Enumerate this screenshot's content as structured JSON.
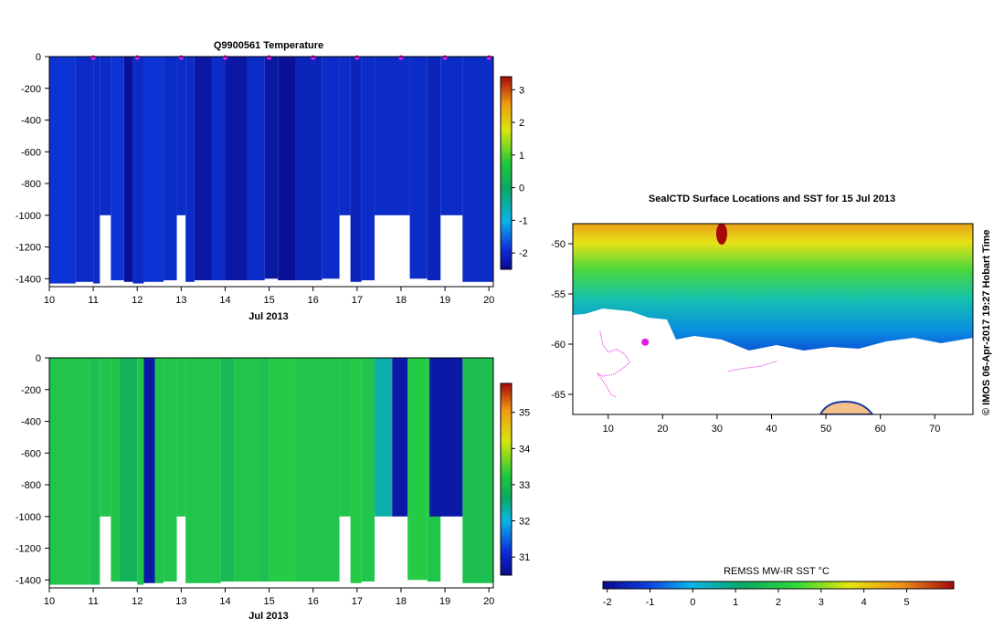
{
  "chart_data": [
    {
      "type": "heatmap",
      "title": "Q9900561  Temperature",
      "xlabel": "Jul 2013",
      "ylabel": "",
      "x_ticks": [
        "10",
        "11",
        "12",
        "13",
        "14",
        "15",
        "16",
        "17",
        "18",
        "19",
        "20"
      ],
      "y_ticks": [
        "0",
        "-200",
        "-400",
        "-600",
        "-800",
        "-1000",
        "-1200",
        "-1400"
      ],
      "xlim": [
        10,
        20.1
      ],
      "ylim": [
        -1450,
        0
      ],
      "colorbar": {
        "ticks": [
          "-2",
          "-1",
          "0",
          "1",
          "2",
          "3"
        ],
        "range": [
          -2.5,
          3.4
        ]
      },
      "profile_markers_day": [
        11,
        12,
        13,
        14,
        15,
        16,
        17,
        18,
        19,
        20
      ],
      "profiles": [
        {
          "x0": 10.0,
          "x1": 10.6,
          "depth": 1430,
          "value": -1.9
        },
        {
          "x0": 10.6,
          "x1": 11.0,
          "depth": 1420,
          "value": -2.0
        },
        {
          "x0": 11.0,
          "x1": 11.15,
          "depth": 1430,
          "value": -2.0
        },
        {
          "x0": 11.4,
          "x1": 11.7,
          "depth": 1410,
          "value": -1.9
        },
        {
          "x0": 11.7,
          "x1": 11.9,
          "depth": 1420,
          "value": -2.4
        },
        {
          "x0": 11.9,
          "x1": 12.15,
          "depth": 1430,
          "value": -2.0
        },
        {
          "x0": 12.15,
          "x1": 12.6,
          "depth": 1420,
          "value": -1.9
        },
        {
          "x0": 12.6,
          "x1": 12.9,
          "depth": 1410,
          "value": -2.0
        },
        {
          "x0": 13.1,
          "x1": 13.3,
          "depth": 1420,
          "value": -2.0
        },
        {
          "x0": 13.3,
          "x1": 13.7,
          "depth": 1410,
          "value": -2.3
        },
        {
          "x0": 13.7,
          "x1": 14.0,
          "depth": 1410,
          "value": -2.0
        },
        {
          "x0": 14.0,
          "x1": 14.5,
          "depth": 1410,
          "value": -2.3
        },
        {
          "x0": 14.5,
          "x1": 14.9,
          "depth": 1410,
          "value": -2.0
        },
        {
          "x0": 14.9,
          "x1": 15.2,
          "depth": 1400,
          "value": -2.3
        },
        {
          "x0": 15.2,
          "x1": 15.6,
          "depth": 1410,
          "value": -2.4
        },
        {
          "x0": 15.6,
          "x1": 16.2,
          "depth": 1410,
          "value": -2.1
        },
        {
          "x0": 16.2,
          "x1": 16.6,
          "depth": 1400,
          "value": -2.0
        },
        {
          "x0": 16.85,
          "x1": 17.1,
          "depth": 1420,
          "value": -2.1
        },
        {
          "x0": 17.1,
          "x1": 17.4,
          "depth": 1410,
          "value": -2.0
        },
        {
          "x0": 18.2,
          "x1": 18.6,
          "depth": 1400,
          "value": -2.0
        },
        {
          "x0": 18.6,
          "x1": 18.9,
          "depth": 1410,
          "value": -2.1
        },
        {
          "x0": 19.4,
          "x1": 20.1,
          "depth": 1420,
          "value": -2.0
        }
      ],
      "shallow_profiles": [
        {
          "x0": 11.15,
          "x1": 11.4,
          "depth": 1000,
          "value": -2.0
        },
        {
          "x0": 12.9,
          "x1": 13.1,
          "depth": 1000,
          "value": -2.0
        },
        {
          "x0": 16.6,
          "x1": 16.85,
          "depth": 1000,
          "value": -2.0
        },
        {
          "x0": 17.4,
          "x1": 18.2,
          "depth": 1000,
          "value": -2.0
        },
        {
          "x0": 18.9,
          "x1": 19.4,
          "depth": 1000,
          "value": -2.0
        }
      ]
    },
    {
      "type": "heatmap",
      "title": "",
      "xlabel": "Jul 2013",
      "ylabel": "",
      "x_ticks": [
        "10",
        "11",
        "12",
        "13",
        "14",
        "15",
        "16",
        "17",
        "18",
        "19",
        "20"
      ],
      "y_ticks": [
        "0",
        "-200",
        "-400",
        "-600",
        "-800",
        "-1000",
        "-1200",
        "-1400"
      ],
      "xlim": [
        10,
        20.1
      ],
      "ylim": [
        -1450,
        0
      ],
      "colorbar": {
        "ticks": [
          "31",
          "32",
          "33",
          "34",
          "35"
        ],
        "range": [
          30.5,
          35.8
        ]
      },
      "profiles": [
        {
          "x0": 10.0,
          "x1": 10.9,
          "depth": 1430,
          "value": 33.1
        },
        {
          "x0": 10.9,
          "x1": 11.15,
          "depth": 1430,
          "value": 33.0
        },
        {
          "x0": 11.4,
          "x1": 11.6,
          "depth": 1410,
          "value": 33.1
        },
        {
          "x0": 11.6,
          "x1": 12.0,
          "depth": 1410,
          "value": 32.8
        },
        {
          "x0": 12.0,
          "x1": 12.15,
          "depth": 1430,
          "value": 33.1
        },
        {
          "x0": 12.15,
          "x1": 12.4,
          "depth": 1420,
          "value": 30.7
        },
        {
          "x0": 12.4,
          "x1": 12.6,
          "depth": 1420,
          "value": 33.1
        },
        {
          "x0": 12.6,
          "x1": 12.9,
          "depth": 1410,
          "value": 33.1
        },
        {
          "x0": 13.1,
          "x1": 13.9,
          "depth": 1420,
          "value": 33.1
        },
        {
          "x0": 13.9,
          "x1": 14.2,
          "depth": 1410,
          "value": 32.9
        },
        {
          "x0": 14.2,
          "x1": 14.8,
          "depth": 1410,
          "value": 33.1
        },
        {
          "x0": 14.8,
          "x1": 15.0,
          "depth": 1410,
          "value": 33.0
        },
        {
          "x0": 15.0,
          "x1": 15.6,
          "depth": 1410,
          "value": 33.2
        },
        {
          "x0": 15.6,
          "x1": 16.6,
          "depth": 1410,
          "value": 33.1
        },
        {
          "x0": 16.85,
          "x1": 17.1,
          "depth": 1420,
          "value": 33.2
        },
        {
          "x0": 17.1,
          "x1": 17.4,
          "depth": 1410,
          "value": 33.1
        },
        {
          "x0": 18.15,
          "x1": 18.6,
          "depth": 1400,
          "value": 33.2
        },
        {
          "x0": 18.6,
          "x1": 18.9,
          "depth": 1410,
          "value": 33.1
        },
        {
          "x0": 19.4,
          "x1": 20.1,
          "depth": 1420,
          "value": 33.0
        }
      ],
      "shallow_profiles": [
        {
          "x0": 11.15,
          "x1": 11.4,
          "depth": 1000,
          "value": 33.1
        },
        {
          "x0": 12.9,
          "x1": 13.1,
          "depth": 1000,
          "value": 33.1
        },
        {
          "x0": 16.6,
          "x1": 16.85,
          "depth": 1000,
          "value": 33.1
        },
        {
          "x0": 17.4,
          "x1": 17.8,
          "depth": 1000,
          "value": 32.2
        },
        {
          "x0": 17.8,
          "x1": 18.15,
          "depth": 1000,
          "value": 30.7
        },
        {
          "x0": 18.65,
          "x1": 19.4,
          "depth": 1000,
          "value": 30.7
        }
      ]
    },
    {
      "type": "heatmap",
      "title": "SealCTD Surface Locations and SST for 15 Jul 2013",
      "xlabel": "",
      "ylabel": "",
      "x_ticks": [
        "10",
        "20",
        "30",
        "40",
        "50",
        "60",
        "70"
      ],
      "y_ticks": [
        "-50",
        "-55",
        "-60",
        "-65"
      ],
      "xlim": [
        3.5,
        77
      ],
      "ylim": [
        -67,
        -48
      ],
      "colorbar": {
        "label": "REMSS MW-IR SST °C",
        "ticks": [
          "-2",
          "-1",
          "0",
          "1",
          "2",
          "3",
          "4",
          "5"
        ],
        "range": [
          -2.1,
          6.1
        ]
      },
      "sst_bands_lat": [
        {
          "lat": -49,
          "value": 3.5
        },
        {
          "lat": -51,
          "value": 2.8
        },
        {
          "lat": -53,
          "value": 1.8
        },
        {
          "lat": -55,
          "value": 1.2
        },
        {
          "lat": -57,
          "value": 0.2
        },
        {
          "lat": -59,
          "value": -1.0
        }
      ],
      "seal_track": [
        [
          8.5,
          -58.7
        ],
        [
          9.0,
          -60.0
        ],
        [
          10.0,
          -60.8
        ],
        [
          11.5,
          -60.5
        ],
        [
          13.0,
          -61.0
        ],
        [
          14.0,
          -61.8
        ],
        [
          12.5,
          -62.5
        ],
        [
          11.0,
          -63.0
        ],
        [
          9.0,
          -63.2
        ],
        [
          8.0,
          -62.9
        ],
        [
          9.5,
          -64.0
        ],
        [
          10.5,
          -65.0
        ],
        [
          11.5,
          -65.3
        ]
      ],
      "seal_track_2": [
        [
          32.0,
          -62.7
        ],
        [
          35.0,
          -62.4
        ],
        [
          38.0,
          -62.2
        ],
        [
          41.0,
          -61.7
        ]
      ],
      "seal_cluster": [
        16.8,
        -59.8
      ]
    }
  ],
  "side_note": "© IMOS 06-Apr-2017 19:27 Hobart Time"
}
